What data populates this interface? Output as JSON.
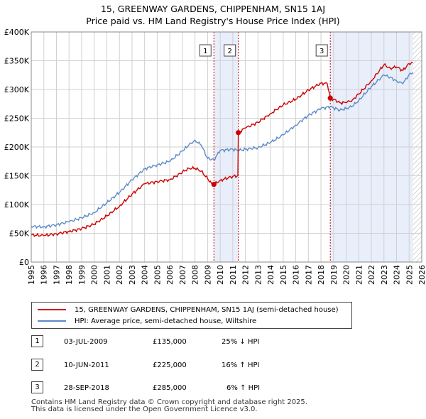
{
  "title_line1": "15, GREENWAY GARDENS, CHIPPENHAM, SN15 1AJ",
  "title_line2": "Price paid vs. HM Land Registry's House Price Index (HPI)",
  "colors": {
    "property": "#cc0000",
    "hpi": "#5b8bc7",
    "shade": "#e8eefa",
    "grid": "#d0d0d0",
    "marker_line": "#cc0000"
  },
  "chart_data": {
    "type": "line",
    "title": "Price paid vs. HM Land Registry's House Price Index (HPI)",
    "xlim": [
      1995,
      2026
    ],
    "ylim": [
      0,
      400000
    ],
    "yticks": [
      {
        "v": 0,
        "label": "£0"
      },
      {
        "v": 50000,
        "label": "£50K"
      },
      {
        "v": 100000,
        "label": "£100K"
      },
      {
        "v": 150000,
        "label": "£150K"
      },
      {
        "v": 200000,
        "label": "£200K"
      },
      {
        "v": 250000,
        "label": "£250K"
      },
      {
        "v": 300000,
        "label": "£300K"
      },
      {
        "v": 350000,
        "label": "£350K"
      },
      {
        "v": 400000,
        "label": "£400K"
      }
    ],
    "xticks": [
      "1995",
      "1996",
      "1997",
      "1998",
      "1999",
      "2000",
      "2001",
      "2002",
      "2003",
      "2004",
      "2005",
      "2006",
      "2007",
      "2008",
      "2009",
      "2010",
      "2011",
      "2012",
      "2013",
      "2014",
      "2015",
      "2016",
      "2017",
      "2018",
      "2019",
      "2020",
      "2021",
      "2022",
      "2023",
      "2024",
      "2025",
      "2026"
    ],
    "shaded_ranges": [
      [
        2009.5,
        2011.44
      ],
      [
        2018.74,
        2025.3
      ]
    ],
    "hatch_from": 2025.3,
    "series": [
      {
        "name": "15, GREENWAY GARDENS, CHIPPENHAM, SN15 1AJ (semi-detached house)",
        "x": [
          1995.0,
          1996.0,
          1997.0,
          1998.0,
          1999.0,
          2000.0,
          2001.0,
          2002.0,
          2003.0,
          2004.0,
          2005.0,
          2006.0,
          2007.0,
          2007.5,
          2008.0,
          2008.5,
          2009.0,
          2009.3,
          2009.5,
          2010.0,
          2011.0,
          2011.4,
          2011.44,
          2012.0,
          2013.0,
          2014.0,
          2015.0,
          2016.0,
          2017.0,
          2018.0,
          2018.5,
          2018.74,
          2019.0,
          2019.5,
          2020.0,
          2020.5,
          2021.0,
          2022.0,
          2023.0,
          2023.5,
          2024.0,
          2024.5,
          2025.0,
          2025.3
        ],
        "y": [
          47000,
          46000,
          49000,
          53000,
          58000,
          66000,
          80000,
          97000,
          118000,
          136000,
          140000,
          143000,
          156000,
          163000,
          163000,
          158000,
          145000,
          137000,
          135000,
          142000,
          149000,
          150000,
          225000,
          233000,
          243000,
          258000,
          273000,
          283000,
          299000,
          311000,
          310000,
          285000,
          283000,
          277000,
          277000,
          282000,
          292000,
          315000,
          343000,
          337000,
          339000,
          333000,
          345000,
          347000
        ]
      },
      {
        "name": "HPI: Average price, semi-detached house, Wiltshire",
        "x": [
          1995.0,
          1996.0,
          1997.0,
          1998.0,
          1999.0,
          2000.0,
          2001.0,
          2002.0,
          2003.0,
          2004.0,
          2005.0,
          2006.0,
          2007.0,
          2007.5,
          2008.0,
          2008.5,
          2009.0,
          2009.5,
          2010.0,
          2011.0,
          2011.44,
          2012.0,
          2013.0,
          2014.0,
          2015.0,
          2016.0,
          2017.0,
          2018.0,
          2018.74,
          2019.0,
          2019.5,
          2020.0,
          2020.5,
          2021.0,
          2022.0,
          2023.0,
          2023.5,
          2024.0,
          2024.5,
          2025.0,
          2025.3
        ],
        "y": [
          62000,
          61000,
          65000,
          70000,
          77000,
          86000,
          103000,
          121000,
          143000,
          162000,
          169000,
          175000,
          193000,
          203000,
          212000,
          203000,
          180000,
          178000,
          194000,
          196000,
          194000,
          196000,
          199000,
          208000,
          221000,
          238000,
          255000,
          267000,
          270000,
          268000,
          264000,
          267000,
          271000,
          281000,
          305000,
          325000,
          321000,
          315000,
          310000,
          326000,
          330000
        ]
      }
    ],
    "sales": [
      {
        "n": "1",
        "x": 2009.5,
        "price": 135000,
        "date": "03-JUL-2009",
        "price_label": "£135,000",
        "hpi_rel": "25% ↓ HPI"
      },
      {
        "n": "2",
        "x": 2011.44,
        "price": 225000,
        "date": "10-JUN-2011",
        "price_label": "£225,000",
        "hpi_rel": "16% ↑ HPI"
      },
      {
        "n": "3",
        "x": 2018.74,
        "price": 285000,
        "date": "28-SEP-2018",
        "price_label": "£285,000",
        "hpi_rel": "6% ↑ HPI"
      }
    ]
  },
  "legend": {
    "property": "15, GREENWAY GARDENS, CHIPPENHAM, SN15 1AJ (semi-detached house)",
    "hpi": "HPI: Average price, semi-detached house, Wiltshire"
  },
  "footer": {
    "line1": "Contains HM Land Registry data © Crown copyright and database right 2025.",
    "line2": "This data is licensed under the Open Government Licence v3.0."
  }
}
